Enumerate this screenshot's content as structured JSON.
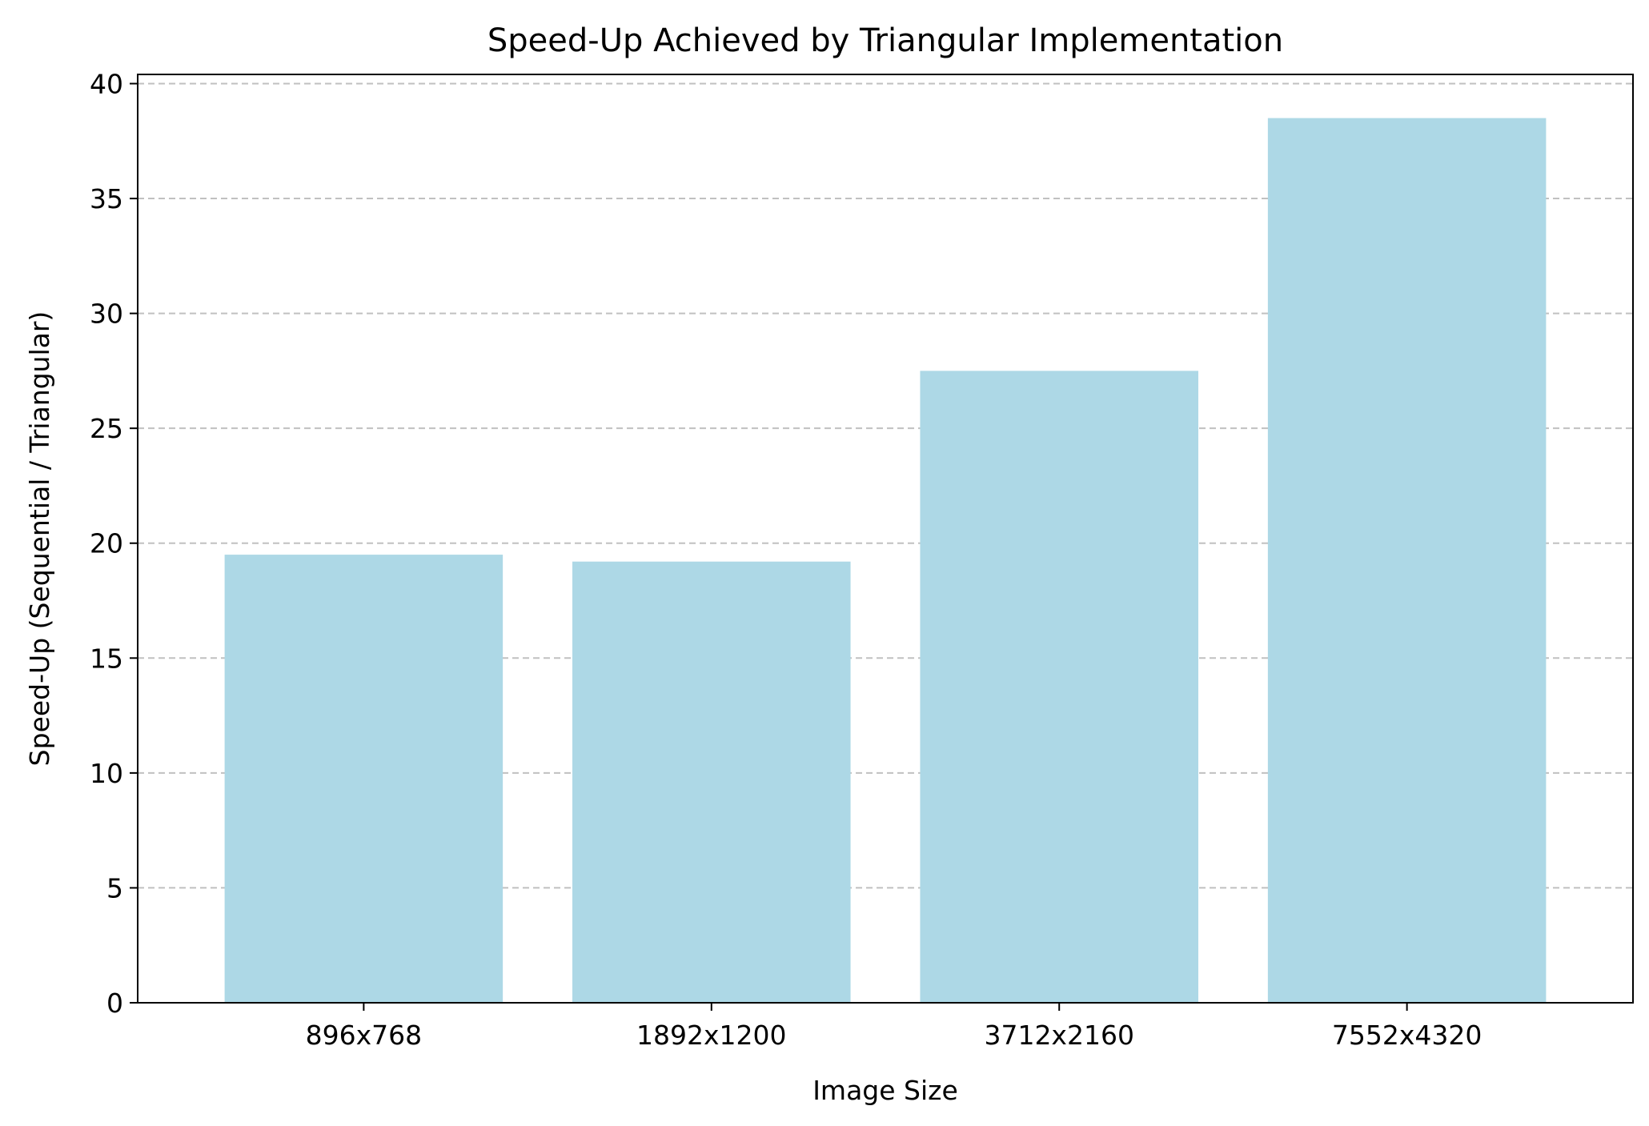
{
  "chart_data": {
    "type": "bar",
    "title": "Speed-Up Achieved by Triangular Implementation",
    "xlabel": "Image Size",
    "ylabel": "Speed-Up (Sequential / Triangular)",
    "categories": [
      "896x768",
      "1892x1200",
      "3712x2160",
      "7552x4320"
    ],
    "values": [
      19.5,
      19.2,
      27.5,
      38.5
    ],
    "ylim": [
      0,
      40.4
    ],
    "yticks": [
      "0",
      "5",
      "10",
      "15",
      "20",
      "25",
      "30",
      "35",
      "40"
    ],
    "grid": "y-dashed",
    "bar_color": "#add8e6",
    "grid_color": "#c0c0c0"
  }
}
